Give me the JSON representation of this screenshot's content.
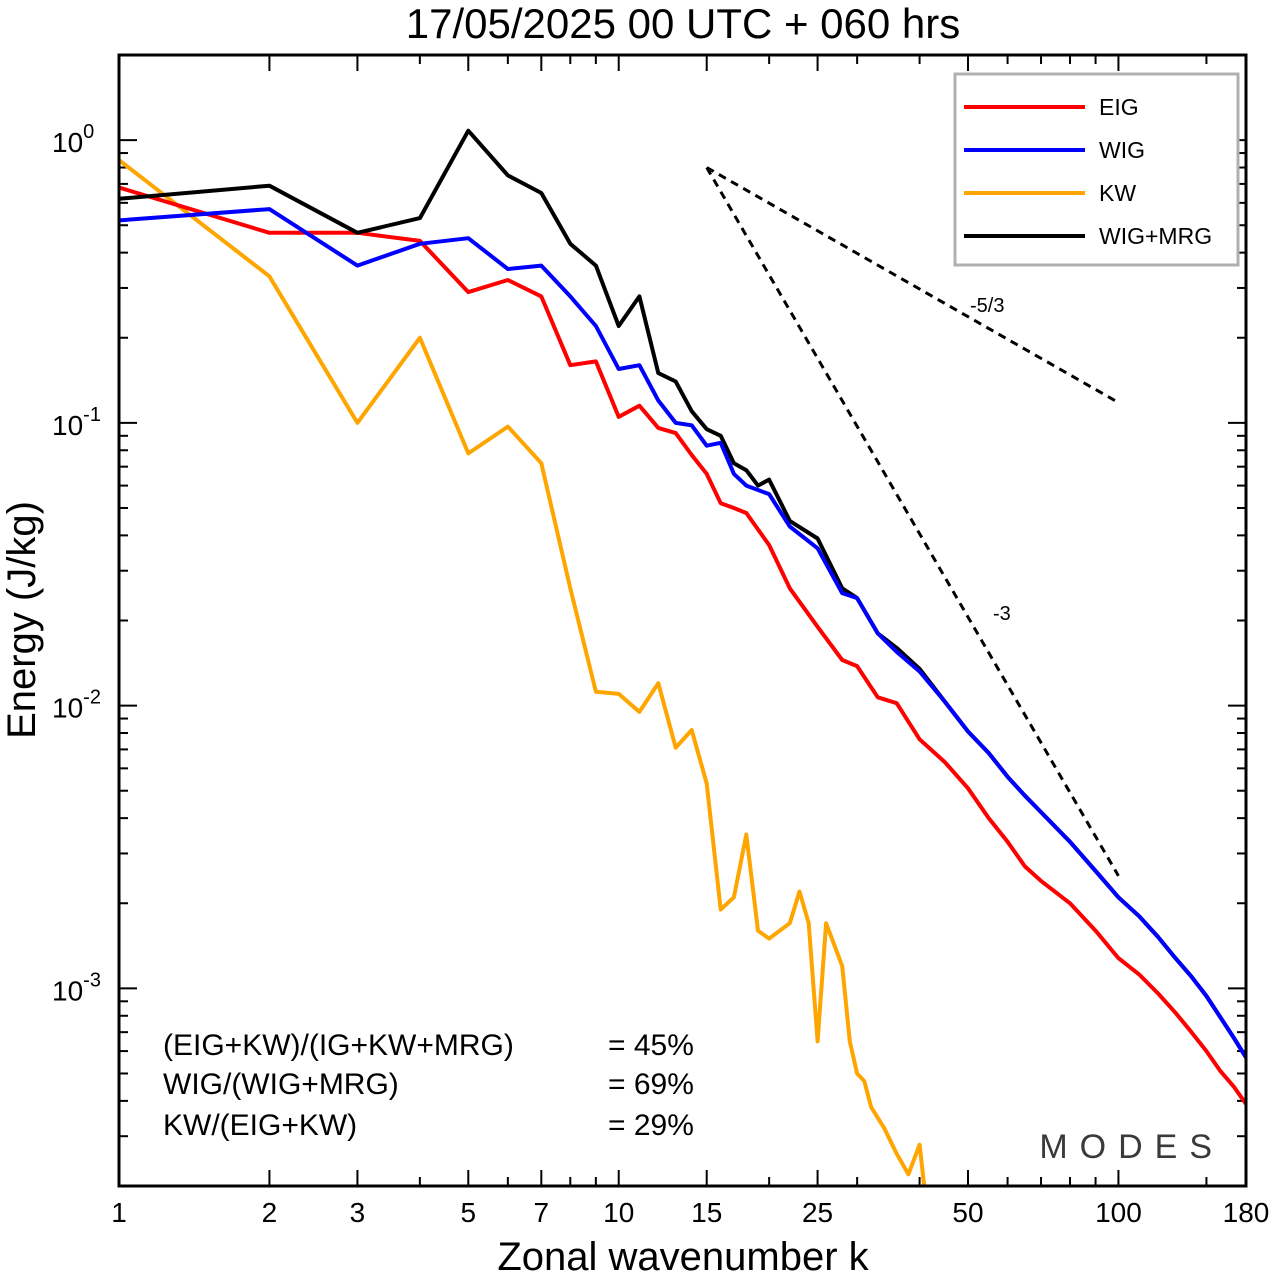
{
  "chart_data": {
    "type": "line",
    "title": "17/05/2025  00 UTC  + 060 hrs",
    "xlabel": "Zonal wavenumber k",
    "ylabel": "Energy (J/kg)",
    "xscale": "log",
    "yscale": "log",
    "xlim": [
      1,
      180
    ],
    "ylim": [
      0.0002,
      2.0
    ],
    "x_ticks": [
      1,
      2,
      3,
      5,
      7,
      10,
      15,
      25,
      50,
      100,
      180
    ],
    "y_ticks": [
      {
        "value": 1.0,
        "base": "10",
        "exp": "0"
      },
      {
        "value": 0.1,
        "base": "10",
        "exp": "-1"
      },
      {
        "value": 0.01,
        "base": "10",
        "exp": "-2"
      },
      {
        "value": 0.001,
        "base": "10",
        "exp": "-3"
      }
    ],
    "legend_position": "top-right",
    "series": [
      {
        "name": "EIG",
        "color": "#ff0000",
        "points": [
          [
            1,
            0.68
          ],
          [
            2,
            0.47
          ],
          [
            3,
            0.47
          ],
          [
            4,
            0.44
          ],
          [
            5,
            0.29
          ],
          [
            6,
            0.32
          ],
          [
            7,
            0.28
          ],
          [
            8,
            0.16
          ],
          [
            9,
            0.165
          ],
          [
            10,
            0.105
          ],
          [
            11,
            0.115
          ],
          [
            12,
            0.096
          ],
          [
            13,
            0.092
          ],
          [
            14,
            0.077
          ],
          [
            15,
            0.066
          ],
          [
            16,
            0.052
          ],
          [
            17,
            0.05
          ],
          [
            18,
            0.048
          ],
          [
            20,
            0.037
          ],
          [
            22,
            0.026
          ],
          [
            25,
            0.019
          ],
          [
            28,
            0.0145
          ],
          [
            30,
            0.0138
          ],
          [
            33,
            0.0107
          ],
          [
            36,
            0.0102
          ],
          [
            40,
            0.0076
          ],
          [
            45,
            0.0063
          ],
          [
            50,
            0.0051
          ],
          [
            55,
            0.004
          ],
          [
            60,
            0.0033
          ],
          [
            65,
            0.0027
          ],
          [
            70,
            0.0024
          ],
          [
            80,
            0.002
          ],
          [
            90,
            0.0016
          ],
          [
            100,
            0.00128
          ],
          [
            110,
            0.00112
          ],
          [
            120,
            0.00096
          ],
          [
            130,
            0.00082
          ],
          [
            140,
            0.0007
          ],
          [
            150,
            0.0006
          ],
          [
            160,
            0.00051
          ],
          [
            170,
            0.00045
          ],
          [
            180,
            0.00039
          ]
        ]
      },
      {
        "name": "WIG",
        "color": "#0000ff",
        "points": [
          [
            1,
            0.52
          ],
          [
            2,
            0.57
          ],
          [
            3,
            0.36
          ],
          [
            4,
            0.43
          ],
          [
            5,
            0.45
          ],
          [
            6,
            0.35
          ],
          [
            7,
            0.36
          ],
          [
            8,
            0.28
          ],
          [
            9,
            0.22
          ],
          [
            10,
            0.155
          ],
          [
            11,
            0.16
          ],
          [
            12,
            0.12
          ],
          [
            13,
            0.1
          ],
          [
            14,
            0.098
          ],
          [
            15,
            0.083
          ],
          [
            16,
            0.085
          ],
          [
            17,
            0.066
          ],
          [
            18,
            0.06
          ],
          [
            20,
            0.056
          ],
          [
            22,
            0.043
          ],
          [
            25,
            0.036
          ],
          [
            28,
            0.025
          ],
          [
            30,
            0.024
          ],
          [
            33,
            0.018
          ],
          [
            36,
            0.0155
          ],
          [
            40,
            0.0132
          ],
          [
            45,
            0.0103
          ],
          [
            50,
            0.0081
          ],
          [
            55,
            0.0068
          ],
          [
            60,
            0.0056
          ],
          [
            65,
            0.0048
          ],
          [
            70,
            0.0042
          ],
          [
            80,
            0.0033
          ],
          [
            90,
            0.0026
          ],
          [
            100,
            0.0021
          ],
          [
            110,
            0.0018
          ],
          [
            120,
            0.00152
          ],
          [
            130,
            0.00128
          ],
          [
            140,
            0.0011
          ],
          [
            150,
            0.00094
          ],
          [
            160,
            0.00079
          ],
          [
            170,
            0.00067
          ],
          [
            180,
            0.00057
          ]
        ]
      },
      {
        "name": "KW",
        "color": "#ffa500",
        "points": [
          [
            1,
            0.85
          ],
          [
            2,
            0.33
          ],
          [
            3,
            0.1
          ],
          [
            4,
            0.2
          ],
          [
            5,
            0.078
          ],
          [
            6,
            0.097
          ],
          [
            7,
            0.072
          ],
          [
            8,
            0.026
          ],
          [
            9,
            0.0112
          ],
          [
            10,
            0.011
          ],
          [
            11,
            0.0095
          ],
          [
            12,
            0.012
          ],
          [
            13,
            0.0071
          ],
          [
            14,
            0.0082
          ],
          [
            15,
            0.0053
          ],
          [
            16,
            0.0019
          ],
          [
            17,
            0.0021
          ],
          [
            18,
            0.0035
          ],
          [
            19,
            0.0016
          ],
          [
            20,
            0.0015
          ],
          [
            21,
            0.0016
          ],
          [
            22,
            0.0017
          ],
          [
            23,
            0.0022
          ],
          [
            24,
            0.0017
          ],
          [
            25,
            0.00065
          ],
          [
            26,
            0.0017
          ],
          [
            28,
            0.0012
          ],
          [
            29,
            0.00065
          ],
          [
            30,
            0.0005
          ],
          [
            31,
            0.00047
          ],
          [
            32,
            0.00038
          ],
          [
            34,
            0.00032
          ],
          [
            36,
            0.00026
          ],
          [
            38,
            0.00022
          ],
          [
            40,
            0.00028
          ],
          [
            41,
            0.00019
          ]
        ]
      },
      {
        "name": "WIG+MRG",
        "color": "#000000",
        "points": [
          [
            1,
            0.62
          ],
          [
            2,
            0.69
          ],
          [
            3,
            0.47
          ],
          [
            4,
            0.53
          ],
          [
            5,
            1.08
          ],
          [
            6,
            0.75
          ],
          [
            7,
            0.65
          ],
          [
            8,
            0.43
          ],
          [
            9,
            0.36
          ],
          [
            10,
            0.22
          ],
          [
            11,
            0.28
          ],
          [
            12,
            0.15
          ],
          [
            13,
            0.14
          ],
          [
            14,
            0.11
          ],
          [
            15,
            0.095
          ],
          [
            16,
            0.09
          ],
          [
            17,
            0.072
          ],
          [
            18,
            0.068
          ],
          [
            19,
            0.06
          ],
          [
            20,
            0.063
          ],
          [
            22,
            0.045
          ],
          [
            25,
            0.039
          ],
          [
            28,
            0.026
          ],
          [
            30,
            0.024
          ],
          [
            33,
            0.018
          ],
          [
            36,
            0.016
          ],
          [
            40,
            0.0135
          ],
          [
            45,
            0.0103
          ],
          [
            50,
            0.0081
          ],
          [
            55,
            0.0068
          ],
          [
            60,
            0.0056
          ],
          [
            65,
            0.0048
          ],
          [
            70,
            0.0042
          ],
          [
            80,
            0.0033
          ],
          [
            90,
            0.0026
          ],
          [
            100,
            0.0021
          ],
          [
            110,
            0.0018
          ],
          [
            120,
            0.00152
          ],
          [
            130,
            0.00128
          ],
          [
            140,
            0.0011
          ],
          [
            150,
            0.00094
          ],
          [
            160,
            0.00079
          ],
          [
            170,
            0.00067
          ],
          [
            180,
            0.00057
          ]
        ]
      }
    ],
    "reference_slopes": [
      {
        "label": "-5/3",
        "start": [
          15,
          0.8
        ],
        "end": [
          100,
          0.118
        ]
      },
      {
        "label": "-3",
        "start": [
          15,
          0.8
        ],
        "end": [
          100,
          0.0025
        ]
      }
    ],
    "annotations": [
      {
        "label": "(EIG+KW)/(IG+KW+MRG)",
        "value": "= 45%"
      },
      {
        "label": "WIG/(WIG+MRG)",
        "value": "= 69%"
      },
      {
        "label": "KW/(EIG+KW)",
        "value": "= 29%"
      }
    ],
    "brand": "MODES"
  }
}
